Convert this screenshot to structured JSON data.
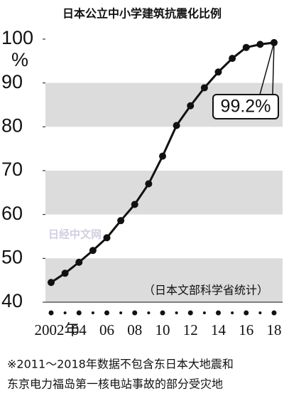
{
  "chart_data": {
    "type": "line",
    "title": "日本公立中小学建筑抗震化比例",
    "ylabel": "%",
    "categories": [
      "2002年",
      null,
      "04",
      null,
      "06",
      null,
      "08",
      null,
      "10",
      null,
      "12",
      null,
      "14",
      null,
      "16",
      null,
      "18"
    ],
    "series": [
      {
        "name": "抗震化比例",
        "color": "#111111",
        "values": [
          44.5,
          46.6,
          49.1,
          51.8,
          54.7,
          58.6,
          62.3,
          67.0,
          73.3,
          80.3,
          84.8,
          88.9,
          92.5,
          95.6,
          98.1,
          98.8,
          99.2
        ],
        "value_labels": [
          null,
          null,
          null,
          null,
          null,
          null,
          null,
          null,
          null,
          null,
          null,
          null,
          null,
          null,
          null,
          null,
          "99.2%"
        ]
      }
    ],
    "ylim": [
      40,
      100
    ],
    "yticks": [
      40,
      50,
      60,
      70,
      80,
      90,
      100
    ],
    "bands": true,
    "source": "（日本文部科学省统计）",
    "watermark": "日经中文网",
    "notes": [
      "※2011～2018年数据不包含东日本大地震和",
      "东京电力福岛第一核电站事故的部分受灾地"
    ]
  }
}
